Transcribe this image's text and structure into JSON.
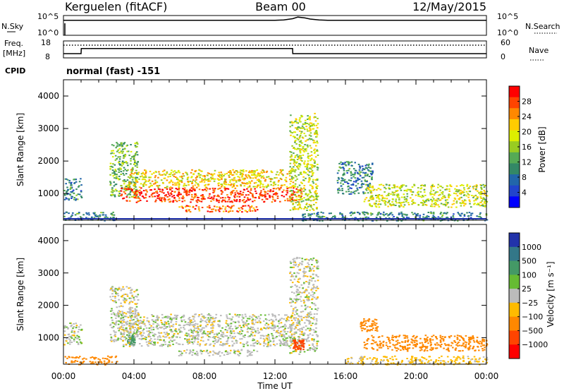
{
  "header": {
    "station": "Kerguelen (fitACF)",
    "beam": "Beam 00",
    "date": "12/May/2015"
  },
  "nsky_panel": {
    "left_label": "N.Sky",
    "left_ticks": [
      "10^5",
      "10^0"
    ],
    "right_label": "N.Search",
    "right_ticks": [
      "10^5",
      "10^0"
    ]
  },
  "freq_panel": {
    "left_label_line1": "Freq.",
    "left_label_line2": "[MHz]",
    "left_ticks": [
      "18",
      "8"
    ],
    "right_label": "Nave",
    "right_ticks": [
      "60",
      "0"
    ]
  },
  "cpid": {
    "label": "CPID",
    "value": "normal (fast) -151"
  },
  "chart_data": [
    {
      "type": "line",
      "name": "nsky-nsearch",
      "x": [
        0,
        3,
        6,
        9,
        12,
        12.5,
        13,
        13.3,
        13.7,
        14,
        14.5,
        15,
        18,
        21,
        24
      ],
      "series": [
        {
          "name": "N.Sky",
          "values": [
            3.8,
            3.8,
            3.8,
            3.8,
            3.8,
            3.9,
            4.2,
            4.6,
            4.4,
            4.1,
            3.9,
            3.8,
            3.8,
            3.8,
            3.8
          ]
        }
      ],
      "ylim": [
        0,
        5
      ]
    },
    {
      "type": "line",
      "name": "frequency-nave",
      "x": [
        0,
        1,
        1.01,
        13,
        13.01,
        24
      ],
      "series": [
        {
          "name": "Freq.",
          "values": [
            10.5,
            10.5,
            13.5,
            13.5,
            10.5,
            10.5
          ]
        },
        {
          "name": "Nave",
          "values": [
            45,
            45,
            45,
            45,
            45,
            45
          ]
        }
      ],
      "ylim": [
        8,
        18
      ]
    },
    {
      "type": "heatmap",
      "name": "power",
      "xlabel": "Time UT",
      "ylabel": "Slant Range [km]",
      "xlim": [
        0,
        24
      ],
      "ylim": [
        180,
        4500
      ],
      "yticks": [
        1000,
        2000,
        3000,
        4000
      ],
      "colorbar_label": "Power [dB]",
      "colorbar_ticks": [
        "28",
        "24",
        "20",
        "16",
        "12",
        "8",
        "4"
      ],
      "colorbar_colors": [
        "#ff0000",
        "#ff4400",
        "#ff8800",
        "#ffcc00",
        "#ddee00",
        "#99cc22",
        "#55aa55",
        "#338866",
        "#2266aa",
        "#2244cc",
        "#0000ff"
      ],
      "regions": [
        {
          "t0": 0.0,
          "t1": 3.0,
          "r0": 180,
          "r1": 450,
          "power": 8
        },
        {
          "t0": 0.0,
          "t1": 1.0,
          "r0": 800,
          "r1": 1500,
          "power": 8
        },
        {
          "t0": 2.6,
          "t1": 4.2,
          "r0": 900,
          "r1": 2600,
          "power": 12
        },
        {
          "t0": 3.2,
          "t1": 13.5,
          "r0": 750,
          "r1": 1200,
          "power": 26
        },
        {
          "t0": 3.5,
          "t1": 13.0,
          "r0": 1200,
          "r1": 1750,
          "power": 18
        },
        {
          "t0": 6.5,
          "t1": 11.0,
          "r0": 450,
          "r1": 650,
          "power": 24
        },
        {
          "t0": 12.8,
          "t1": 14.4,
          "r0": 500,
          "r1": 3500,
          "power": 16
        },
        {
          "t0": 13.5,
          "t1": 16.0,
          "r0": 180,
          "r1": 450,
          "power": 8
        },
        {
          "t0": 15.5,
          "t1": 17.5,
          "r0": 1000,
          "r1": 2000,
          "power": 8
        },
        {
          "t0": 17.0,
          "t1": 24.0,
          "r0": 600,
          "r1": 1300,
          "power": 16
        },
        {
          "t0": 16.0,
          "t1": 24.0,
          "r0": 180,
          "r1": 450,
          "power": 8
        }
      ]
    },
    {
      "type": "heatmap",
      "name": "velocity",
      "xlabel": "Time UT",
      "ylabel": "Slant Range [km]",
      "xlim": [
        0,
        24
      ],
      "ylim": [
        180,
        4500
      ],
      "yticks": [
        1000,
        2000,
        3000,
        4000
      ],
      "xticks": [
        "00:00",
        "04:00",
        "08:00",
        "12:00",
        "16:00",
        "20:00",
        "00:00"
      ],
      "colorbar_label": "Velocity [m s⁻¹]",
      "colorbar_ticks": [
        "1000",
        "500",
        "100",
        "25",
        "−25",
        "−100",
        "−500",
        "−1000"
      ],
      "colorbar_colors": [
        "#2233aa",
        "#337788",
        "#449966",
        "#66bb33",
        "#bbbbbb",
        "#ffbb00",
        "#ff8800",
        "#ff4400",
        "#ff0000"
      ],
      "regions": [
        {
          "t0": 0.0,
          "t1": 3.0,
          "r0": 180,
          "r1": 450,
          "velocity": -150
        },
        {
          "t0": 0.0,
          "t1": 1.0,
          "r0": 800,
          "r1": 1500,
          "velocity": 0
        },
        {
          "t0": 2.6,
          "t1": 4.2,
          "r0": 900,
          "r1": 2600,
          "velocity": 0
        },
        {
          "t0": 3.6,
          "t1": 4.0,
          "r0": 800,
          "r1": 1100,
          "velocity": 100
        },
        {
          "t0": 3.2,
          "t1": 13.0,
          "r0": 750,
          "r1": 1750,
          "velocity": 0
        },
        {
          "t0": 6.5,
          "t1": 11.0,
          "r0": 450,
          "r1": 650,
          "velocity": 0
        },
        {
          "t0": 12.8,
          "t1": 14.4,
          "r0": 500,
          "r1": 3500,
          "velocity": 0
        },
        {
          "t0": 13.0,
          "t1": 13.6,
          "r0": 650,
          "r1": 950,
          "velocity": -500
        },
        {
          "t0": 16.8,
          "t1": 17.8,
          "r0": 1200,
          "r1": 1600,
          "velocity": -150
        },
        {
          "t0": 17.0,
          "t1": 24.0,
          "r0": 600,
          "r1": 1100,
          "velocity": -150
        },
        {
          "t0": 16.0,
          "t1": 24.0,
          "r0": 180,
          "r1": 450,
          "velocity": -50
        }
      ]
    }
  ]
}
